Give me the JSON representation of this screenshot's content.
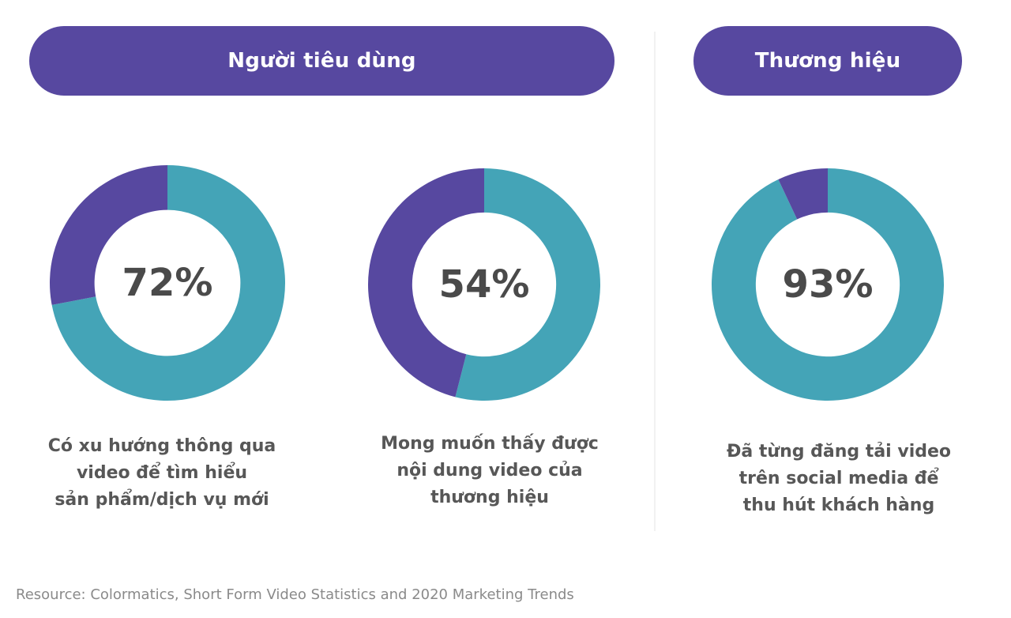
{
  "headers": {
    "consumer": "Người tiêu dùng",
    "brand": "Thương hiệu"
  },
  "colors": {
    "teal": "#44a4b7",
    "purple": "#5748a0",
    "text": "#4a4a4a"
  },
  "chart_data": [
    {
      "type": "pie",
      "group": "Người tiêu dùng",
      "center_label": "72%",
      "value": 72,
      "slices": [
        {
          "value": 72,
          "color": "#44a4b7"
        },
        {
          "value": 28,
          "color": "#5748a0"
        }
      ],
      "caption": [
        "Có xu hướng thông qua",
        "video để tìm hiểu",
        "sản phẩm/dịch vụ mới"
      ]
    },
    {
      "type": "pie",
      "group": "Người tiêu dùng",
      "center_label": "54%",
      "value": 54,
      "slices": [
        {
          "value": 54,
          "color": "#44a4b7"
        },
        {
          "value": 46,
          "color": "#5748a0"
        }
      ],
      "caption": [
        "Mong muốn thấy được",
        "nội dung video của",
        "thương hiệu"
      ]
    },
    {
      "type": "pie",
      "group": "Thương hiệu",
      "center_label": "93%",
      "value": 93,
      "slices": [
        {
          "value": 93,
          "color": "#44a4b7"
        },
        {
          "value": 7,
          "color": "#5748a0"
        }
      ],
      "caption": [
        "Đã từng đăng tải video",
        "trên social media để",
        "thu hút khách hàng"
      ]
    }
  ],
  "footer": "Resource: Colormatics, Short Form Video Statistics and 2020 Marketing Trends"
}
